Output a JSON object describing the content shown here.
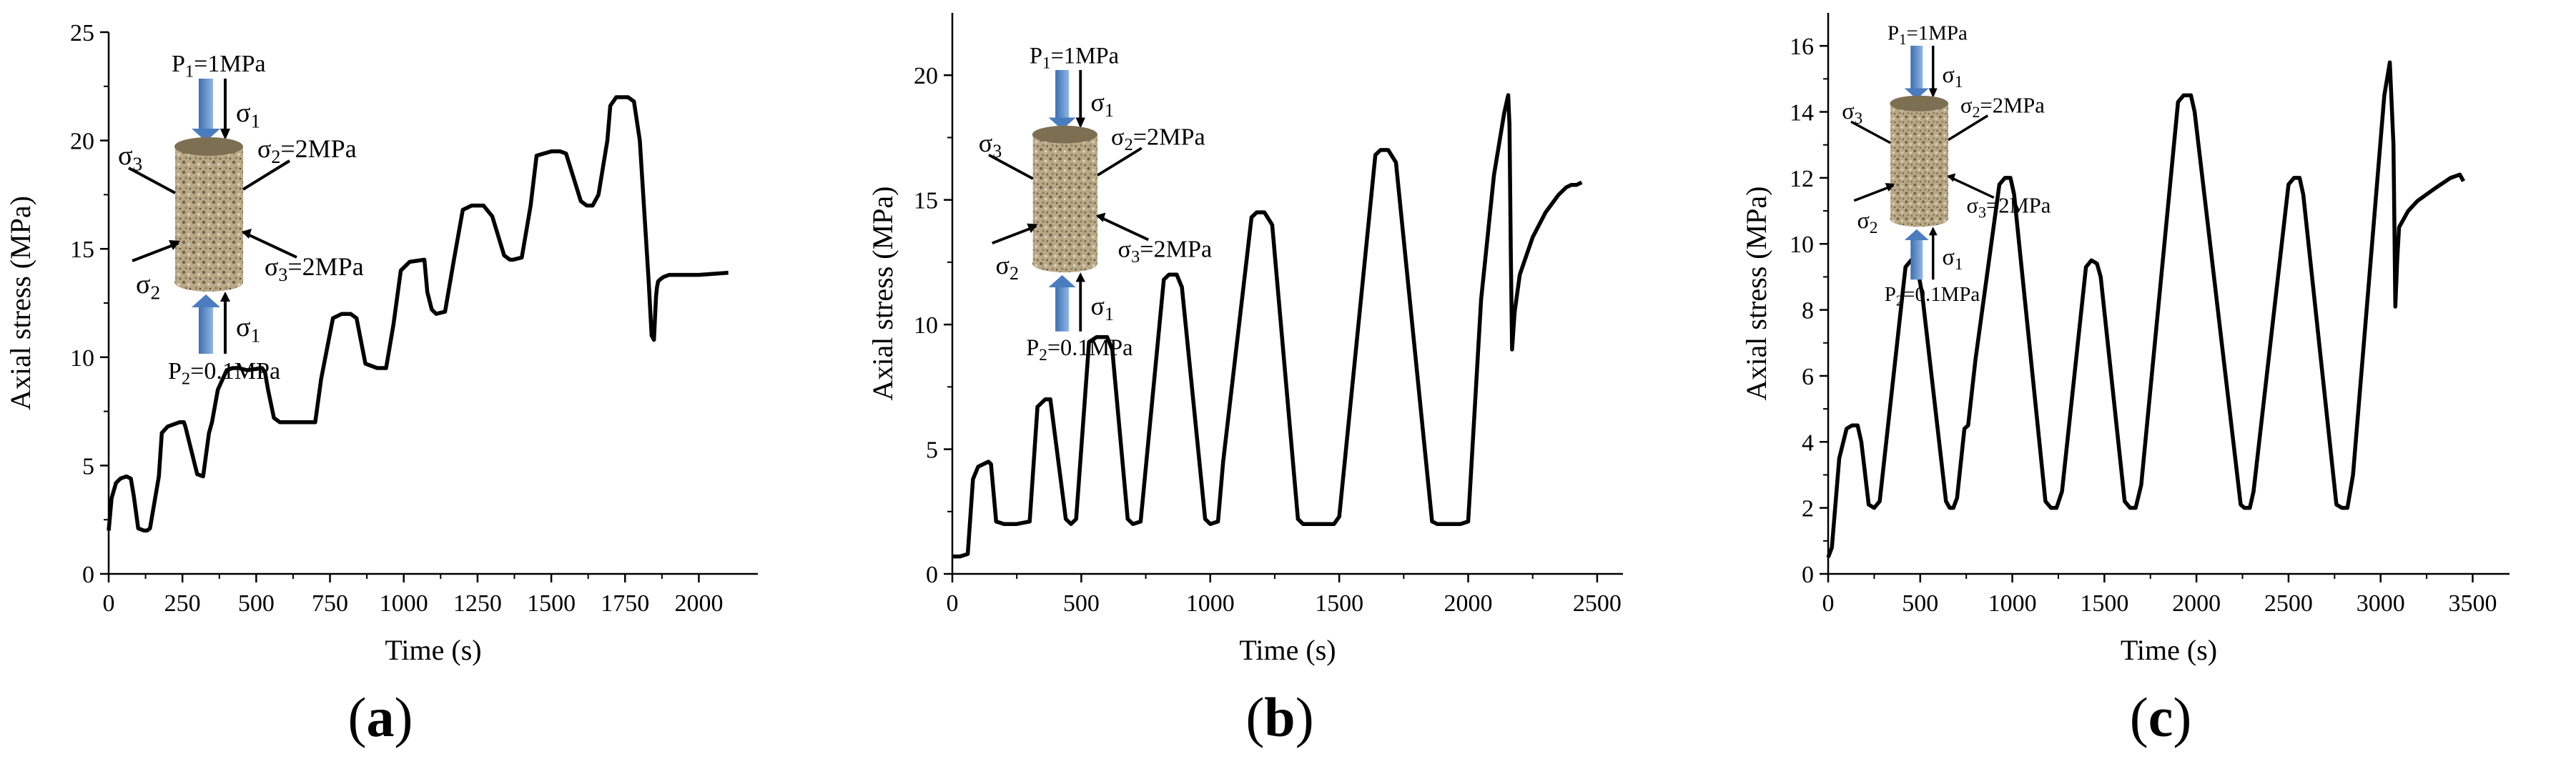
{
  "chart_data": [
    {
      "type": "line",
      "panel_label": "(a)",
      "panel_letter": "a",
      "xlabel": "Time (s)",
      "ylabel": "Axial stress (MPa)",
      "xlim": [
        0,
        2200
      ],
      "ylim": [
        0,
        25
      ],
      "xticks": [
        0,
        250,
        500,
        750,
        1000,
        1250,
        1500,
        1750,
        2000
      ],
      "yticks": [
        0,
        5,
        10,
        15,
        20,
        25
      ],
      "inset": {
        "p1": "P1=1MPa",
        "p2": "P2=0.1MPa",
        "s1_top": "σ1",
        "s1_bottom": "σ1",
        "s2_label": "σ2=2MPa",
        "s2": "σ2",
        "s3_label": "σ3=2MPa",
        "s3": "σ3"
      },
      "series": [
        {
          "name": "Axial stress",
          "x": [
            0,
            10,
            25,
            40,
            60,
            75,
            85,
            100,
            120,
            130,
            140,
            170,
            180,
            200,
            240,
            255,
            260,
            300,
            320,
            340,
            350,
            370,
            400,
            420,
            435,
            440,
            470,
            520,
            530,
            540,
            560,
            580,
            690,
            700,
            720,
            760,
            790,
            800,
            820,
            840,
            870,
            910,
            920,
            940,
            965,
            990,
            1020,
            1070,
            1080,
            1095,
            1110,
            1140,
            1170,
            1200,
            1230,
            1260,
            1270,
            1300,
            1340,
            1360,
            1370,
            1400,
            1430,
            1450,
            1500,
            1530,
            1550,
            1600,
            1620,
            1640,
            1660,
            1690,
            1700,
            1720,
            1760,
            1780,
            1800,
            1830,
            1840,
            1848,
            1852,
            1855,
            1858,
            1862,
            1870,
            1880,
            1900,
            1950,
            2000,
            2100
          ],
          "y": [
            2.0,
            3.5,
            4.2,
            4.4,
            4.5,
            4.4,
            3.6,
            2.1,
            2.0,
            2.0,
            2.1,
            4.5,
            6.5,
            6.8,
            7.0,
            7.0,
            6.8,
            4.6,
            4.5,
            6.5,
            7.0,
            8.5,
            9.4,
            9.5,
            9.5,
            9.5,
            9.4,
            9.5,
            9.3,
            8.5,
            7.2,
            7.0,
            7.0,
            7.0,
            9.0,
            11.8,
            12.0,
            12.0,
            12.0,
            11.8,
            9.7,
            9.5,
            9.5,
            9.5,
            11.5,
            14.0,
            14.4,
            14.5,
            13.0,
            12.2,
            12.0,
            12.1,
            14.5,
            16.8,
            17.0,
            17.0,
            17.0,
            16.5,
            14.7,
            14.5,
            14.5,
            14.6,
            17.0,
            19.3,
            19.5,
            19.5,
            19.4,
            17.2,
            17.0,
            17.0,
            17.5,
            20.0,
            21.6,
            22.0,
            22.0,
            21.8,
            20.0,
            13.5,
            11.0,
            10.8,
            12.0,
            12.8,
            13.2,
            13.5,
            13.6,
            13.7,
            13.8,
            13.8,
            13.8,
            13.9
          ]
        }
      ]
    },
    {
      "type": "line",
      "panel_label": "(b)",
      "panel_letter": "b",
      "xlabel": "Time (s)",
      "ylabel": "Axial stress (MPa)",
      "xlim": [
        0,
        2600
      ],
      "ylim": [
        0,
        22.5
      ],
      "xticks": [
        0,
        500,
        1000,
        1500,
        2000,
        2500
      ],
      "yticks": [
        0,
        5,
        10,
        15,
        20
      ],
      "inset": {
        "p1": "P1=1MPa",
        "p2": "P2=0.1MPa",
        "s1_top": "σ1",
        "s1_bottom": "σ1",
        "s2_label": "σ2=2MPa",
        "s2": "σ2",
        "s3_label": "σ3=2MPa",
        "s3": "σ3"
      },
      "series": [
        {
          "name": "Axial stress",
          "x": [
            0,
            30,
            60,
            80,
            100,
            140,
            150,
            170,
            200,
            250,
            300,
            330,
            360,
            380,
            440,
            460,
            480,
            530,
            560,
            600,
            620,
            680,
            700,
            730,
            820,
            840,
            870,
            890,
            980,
            1000,
            1030,
            1050,
            1160,
            1180,
            1210,
            1240,
            1340,
            1360,
            1400,
            1480,
            1500,
            1640,
            1660,
            1690,
            1720,
            1860,
            1880,
            1920,
            1970,
            2000,
            2050,
            2100,
            2140,
            2155,
            2160,
            2165,
            2170,
            2180,
            2200,
            2250,
            2300,
            2350,
            2380,
            2400,
            2420,
            2440
          ],
          "y": [
            0.7,
            0.7,
            0.8,
            3.8,
            4.3,
            4.5,
            4.4,
            2.1,
            2.0,
            2.0,
            2.1,
            6.7,
            7.0,
            7.0,
            2.2,
            2.0,
            2.2,
            9.3,
            9.5,
            9.5,
            9.0,
            2.2,
            2.0,
            2.1,
            11.8,
            12.0,
            12.0,
            11.5,
            2.2,
            2.0,
            2.1,
            4.5,
            14.3,
            14.5,
            14.5,
            14.0,
            2.2,
            2.0,
            2.0,
            2.0,
            2.3,
            16.8,
            17.0,
            17.0,
            16.5,
            2.1,
            2.0,
            2.0,
            2.0,
            2.1,
            11.0,
            16.0,
            18.5,
            19.2,
            18.0,
            13.0,
            9.0,
            10.5,
            12.0,
            13.5,
            14.5,
            15.2,
            15.5,
            15.6,
            15.6,
            15.7
          ]
        }
      ]
    },
    {
      "type": "line",
      "panel_label": "(c)",
      "panel_letter": "c",
      "xlabel": "Time (s)",
      "ylabel": "Axial stress (MPa)",
      "xlim": [
        0,
        3700
      ],
      "ylim": [
        0,
        17
      ],
      "xticks": [
        0,
        500,
        1000,
        1500,
        2000,
        2500,
        3000,
        3500
      ],
      "yticks": [
        0,
        2,
        4,
        6,
        8,
        10,
        12,
        14,
        16
      ],
      "inset": {
        "p1": "P1=1MPa",
        "p2": "P2=0.1MPa",
        "s1_top": "σ1",
        "s1_bottom": "σ1",
        "s2_label": "σ2=2MPa",
        "s2": "σ2",
        "s3_label": "σ3=2MPa",
        "s3": "σ3"
      },
      "series": [
        {
          "name": "Axial stress",
          "x": [
            0,
            20,
            60,
            100,
            130,
            160,
            180,
            220,
            250,
            280,
            420,
            450,
            480,
            510,
            640,
            660,
            680,
            700,
            740,
            760,
            800,
            930,
            960,
            990,
            1010,
            1180,
            1210,
            1240,
            1270,
            1400,
            1430,
            1460,
            1480,
            1610,
            1640,
            1670,
            1700,
            1900,
            1930,
            1970,
            1990,
            2240,
            2260,
            2290,
            2310,
            2500,
            2530,
            2560,
            2580,
            2760,
            2790,
            2820,
            2850,
            3020,
            3050,
            3070,
            3080,
            3090,
            3100,
            3150,
            3200,
            3300,
            3380,
            3430,
            3450
          ],
          "y": [
            0.5,
            0.8,
            3.5,
            4.4,
            4.5,
            4.5,
            4.0,
            2.1,
            2.0,
            2.2,
            9.3,
            9.5,
            9.4,
            8.5,
            2.2,
            2.0,
            2.0,
            2.3,
            4.4,
            4.5,
            6.5,
            11.8,
            12.0,
            12.0,
            11.5,
            2.2,
            2.0,
            2.0,
            2.5,
            9.3,
            9.5,
            9.4,
            9.0,
            2.2,
            2.0,
            2.0,
            2.7,
            14.3,
            14.5,
            14.5,
            14.0,
            2.1,
            2.0,
            2.0,
            2.5,
            11.8,
            12.0,
            12.0,
            11.5,
            2.1,
            2.0,
            2.0,
            3.0,
            14.5,
            15.5,
            13.0,
            8.1,
            9.5,
            10.5,
            11.0,
            11.3,
            11.7,
            12.0,
            12.1,
            11.9
          ]
        }
      ]
    }
  ]
}
